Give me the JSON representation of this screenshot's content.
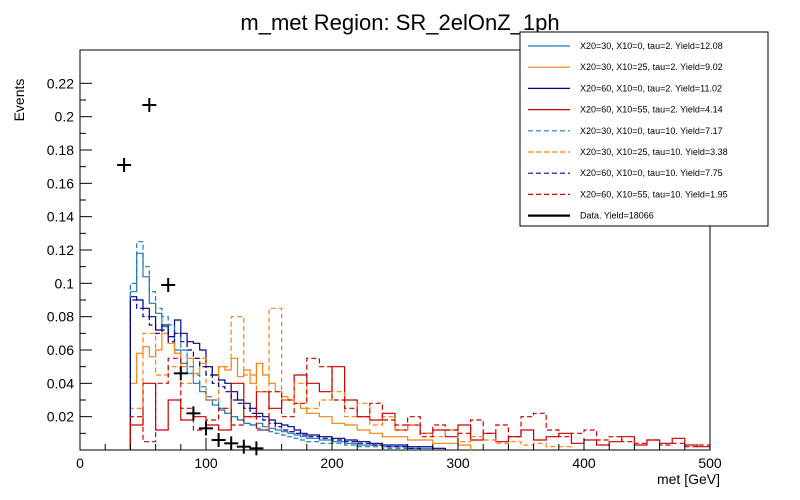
{
  "chart_data": {
    "type": "histogram",
    "title": "m_met Region: SR_2elOnZ_1ph",
    "xlabel": "met [GeV]",
    "ylabel": "Events",
    "xlim": [
      0,
      500
    ],
    "ylim": [
      0,
      0.24
    ],
    "bin_width": 10,
    "x_ticks": [
      0,
      100,
      200,
      300,
      400,
      500
    ],
    "y_ticks": [
      0.02,
      0.04,
      0.06,
      0.08,
      0.1,
      0.12,
      0.14,
      0.16,
      0.18,
      0.2,
      0.22
    ],
    "series": [
      {
        "name": "X20=30, X10=0, tau=2. Yield=12.08",
        "color": "#1f77b4",
        "dash": false,
        "bin_starts": [
          40,
          45,
          50,
          55,
          60,
          65,
          70,
          75,
          80,
          85,
          90,
          95,
          100,
          105,
          110,
          115,
          120,
          125,
          130,
          135,
          140,
          145,
          150,
          155,
          160,
          165,
          170,
          175,
          180,
          190,
          200,
          210,
          220,
          230,
          240,
          250,
          260,
          270
        ],
        "values": [
          0.095,
          0.118,
          0.104,
          0.088,
          0.082,
          0.074,
          0.068,
          0.06,
          0.052,
          0.046,
          0.04,
          0.035,
          0.03,
          0.027,
          0.024,
          0.022,
          0.02,
          0.018,
          0.016,
          0.015,
          0.016,
          0.014,
          0.013,
          0.012,
          0.011,
          0.01,
          0.009,
          0.008,
          0.007,
          0.006,
          0.005,
          0.004,
          0.003,
          0.003,
          0.002,
          0.002,
          0.001,
          0.001
        ]
      },
      {
        "name": "X20=30, X10=25, tau=2. Yield=9.02",
        "color": "#ff7f0e",
        "dash": false,
        "bin_starts": [
          40,
          45,
          50,
          55,
          60,
          65,
          70,
          75,
          80,
          85,
          90,
          95,
          100,
          105,
          110,
          115,
          120,
          125,
          130,
          135,
          140,
          145,
          150,
          155,
          160,
          165,
          170,
          175,
          180,
          190,
          200,
          210,
          220,
          230,
          240,
          250,
          260,
          270,
          280,
          290,
          300
        ],
        "values": [
          0.04,
          0.058,
          0.062,
          0.056,
          0.06,
          0.07,
          0.064,
          0.058,
          0.05,
          0.055,
          0.046,
          0.052,
          0.05,
          0.045,
          0.05,
          0.048,
          0.055,
          0.044,
          0.048,
          0.04,
          0.052,
          0.045,
          0.04,
          0.035,
          0.032,
          0.03,
          0.028,
          0.025,
          0.022,
          0.02,
          0.016,
          0.015,
          0.012,
          0.01,
          0.008,
          0.008,
          0.006,
          0.006,
          0.004,
          0.004,
          0.003
        ]
      },
      {
        "name": "X20=60, X10=0, tau=2. Yield=11.02",
        "color": "#00008b",
        "dash": false,
        "bin_starts": [
          40,
          45,
          50,
          55,
          60,
          65,
          70,
          75,
          80,
          85,
          90,
          95,
          100,
          105,
          110,
          115,
          120,
          125,
          130,
          135,
          140,
          145,
          150,
          155,
          160,
          165,
          170,
          175,
          180,
          190,
          200,
          210,
          220,
          230,
          240,
          250,
          260,
          270,
          280
        ],
        "values": [
          0.092,
          0.09,
          0.085,
          0.08,
          0.072,
          0.075,
          0.068,
          0.078,
          0.07,
          0.065,
          0.064,
          0.06,
          0.05,
          0.045,
          0.042,
          0.04,
          0.035,
          0.03,
          0.028,
          0.025,
          0.022,
          0.02,
          0.018,
          0.016,
          0.015,
          0.014,
          0.012,
          0.01,
          0.009,
          0.008,
          0.007,
          0.006,
          0.005,
          0.004,
          0.003,
          0.003,
          0.002,
          0.002,
          0.001
        ]
      },
      {
        "name": "X20=60, X10=55, tau=2. Yield=4.14",
        "color": "#cc0000",
        "dash": false,
        "bin_starts": [
          40,
          50,
          60,
          70,
          80,
          90,
          100,
          110,
          120,
          130,
          140,
          150,
          160,
          170,
          180,
          190,
          200,
          210,
          220,
          230,
          240,
          250,
          260,
          270,
          280,
          290,
          300,
          310,
          320,
          330,
          340,
          350,
          360,
          370,
          380,
          390,
          400,
          410,
          420,
          430,
          440,
          450,
          460,
          470,
          480,
          490
        ],
        "values": [
          0.015,
          0.04,
          0.012,
          0.03,
          0.018,
          0.02,
          0.015,
          0.012,
          0.04,
          0.02,
          0.035,
          0.025,
          0.03,
          0.045,
          0.04,
          0.035,
          0.05,
          0.03,
          0.02,
          0.018,
          0.022,
          0.012,
          0.015,
          0.01,
          0.012,
          0.008,
          0.015,
          0.006,
          0.01,
          0.005,
          0.008,
          0.012,
          0.006,
          0.008,
          0.01,
          0.004,
          0.006,
          0.003,
          0.005,
          0.008,
          0.003,
          0.006,
          0.004,
          0.007,
          0.003,
          0.002
        ]
      },
      {
        "name": "X20=30, X10=0, tau=10. Yield=7.17",
        "color": "#1f77b4",
        "dash": true,
        "bin_starts": [
          40,
          45,
          50,
          55,
          60,
          65,
          70,
          75,
          80,
          85,
          90,
          95,
          100,
          105,
          110,
          115,
          120,
          125,
          130,
          135,
          140,
          145,
          150,
          155,
          160,
          165,
          170,
          175,
          180,
          190,
          200,
          210,
          220,
          230,
          240,
          250
        ],
        "values": [
          0.1,
          0.125,
          0.11,
          0.095,
          0.085,
          0.08,
          0.075,
          0.07,
          0.06,
          0.05,
          0.045,
          0.038,
          0.032,
          0.03,
          0.025,
          0.022,
          0.02,
          0.018,
          0.016,
          0.015,
          0.013,
          0.012,
          0.011,
          0.01,
          0.009,
          0.008,
          0.007,
          0.006,
          0.005,
          0.004,
          0.004,
          0.003,
          0.002,
          0.002,
          0.001,
          0.001
        ]
      },
      {
        "name": "X20=30, X10=25, tau=10. Yield=3.38",
        "color": "#ff7f0e",
        "dash": true,
        "bin_starts": [
          40,
          50,
          60,
          70,
          80,
          90,
          100,
          110,
          120,
          130,
          140,
          150,
          160,
          170,
          180,
          190,
          200,
          210,
          220,
          230,
          240,
          250,
          260,
          270,
          280,
          290,
          300,
          310,
          320,
          330,
          340,
          350,
          360,
          370,
          380
        ],
        "values": [
          0.025,
          0.07,
          0.045,
          0.05,
          0.04,
          0.055,
          0.03,
          0.05,
          0.08,
          0.045,
          0.035,
          0.085,
          0.03,
          0.04,
          0.025,
          0.03,
          0.035,
          0.02,
          0.028,
          0.015,
          0.02,
          0.012,
          0.015,
          0.01,
          0.008,
          0.012,
          0.005,
          0.008,
          0.006,
          0.004,
          0.005,
          0.003,
          0.004,
          0.002,
          0.002
        ]
      },
      {
        "name": "X20=60, X10=0, tau=10. Yield=7.75",
        "color": "#00008b",
        "dash": true,
        "bin_starts": [
          40,
          45,
          50,
          55,
          60,
          65,
          70,
          75,
          80,
          85,
          90,
          95,
          100,
          105,
          110,
          115,
          120,
          125,
          130,
          135,
          140,
          145,
          150,
          155,
          160,
          165,
          170,
          175,
          180,
          190,
          200,
          210,
          220,
          230,
          240,
          250,
          260
        ],
        "values": [
          0.09,
          0.085,
          0.08,
          0.075,
          0.07,
          0.072,
          0.065,
          0.07,
          0.065,
          0.06,
          0.055,
          0.05,
          0.045,
          0.04,
          0.038,
          0.035,
          0.03,
          0.028,
          0.025,
          0.022,
          0.02,
          0.018,
          0.016,
          0.014,
          0.012,
          0.011,
          0.01,
          0.009,
          0.008,
          0.007,
          0.006,
          0.005,
          0.004,
          0.003,
          0.002,
          0.002,
          0.001
        ]
      },
      {
        "name": "X20=60, X10=55, tau=10. Yield=1.95",
        "color": "#cc0000",
        "dash": true,
        "bin_starts": [
          40,
          50,
          60,
          70,
          80,
          90,
          100,
          110,
          120,
          130,
          140,
          150,
          160,
          170,
          180,
          190,
          200,
          210,
          220,
          230,
          240,
          250,
          260,
          270,
          280,
          290,
          300,
          310,
          320,
          330,
          340,
          350,
          360,
          370,
          380,
          390,
          400,
          410,
          420,
          430,
          440,
          450,
          460,
          470,
          480,
          490
        ],
        "values": [
          0.02,
          0.005,
          0.04,
          0.055,
          0.025,
          0.012,
          0.018,
          0.025,
          0.015,
          0.02,
          0.012,
          0.035,
          0.02,
          0.028,
          0.055,
          0.05,
          0.03,
          0.025,
          0.02,
          0.028,
          0.018,
          0.015,
          0.02,
          0.008,
          0.015,
          0.012,
          0.01,
          0.018,
          0.01,
          0.015,
          0.008,
          0.02,
          0.022,
          0.012,
          0.008,
          0.01,
          0.012,
          0.006,
          0.008,
          0.005,
          0.004,
          0.006,
          0.003,
          0.004,
          0.002,
          0.003
        ]
      },
      {
        "name": "Data. Yield=18066",
        "color": "#000000",
        "dash": false,
        "points": true,
        "points_x": [
          35,
          55,
          70,
          80,
          90,
          100,
          110,
          120,
          130,
          140
        ],
        "points_y": [
          0.171,
          0.207,
          0.099,
          0.046,
          0.022,
          0.013,
          0.006,
          0.004,
          0.002,
          0.001
        ]
      }
    ]
  }
}
